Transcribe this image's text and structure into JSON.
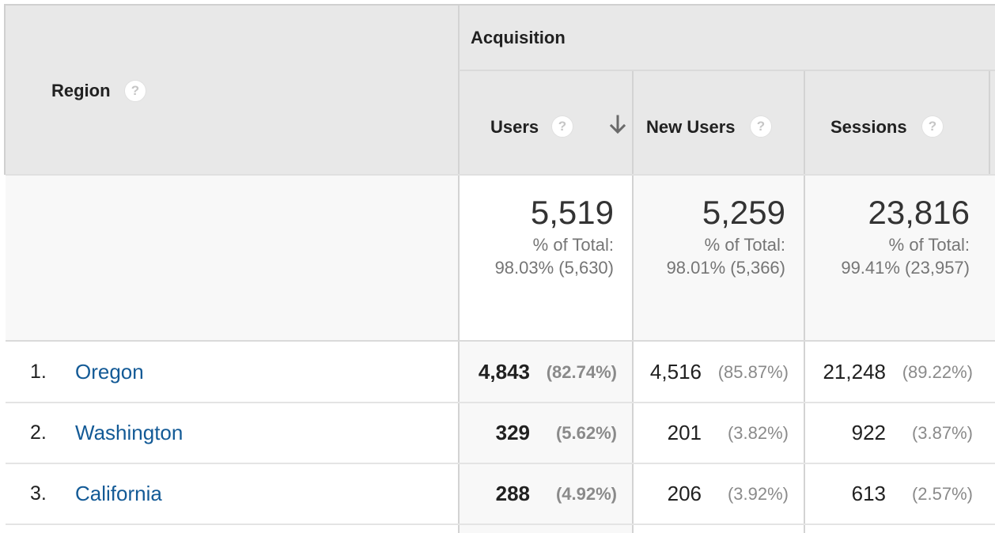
{
  "header": {
    "region_label": "Region",
    "group_label": "Acquisition",
    "columns": [
      {
        "label": "Users",
        "sorted": "descending"
      },
      {
        "label": "New Users"
      },
      {
        "label": "Sessions"
      }
    ],
    "help_glyph": "?"
  },
  "totals": [
    {
      "value": "5,519",
      "pct_label": "% of Total:",
      "pct_detail": "98.03% (5,630)"
    },
    {
      "value": "5,259",
      "pct_label": "% of Total:",
      "pct_detail": "98.01% (5,366)"
    },
    {
      "value": "23,816",
      "pct_label": "% of Total:",
      "pct_detail": "99.41% (23,957)"
    }
  ],
  "rows": [
    {
      "num": "1.",
      "region": "Oregon",
      "users": "4,843",
      "users_pct": "(82.74%)",
      "new_users": "4,516",
      "new_users_pct": "(85.87%)",
      "sessions": "21,248",
      "sessions_pct": "(89.22%)"
    },
    {
      "num": "2.",
      "region": "Washington",
      "users": "329",
      "users_pct": "(5.62%)",
      "new_users": "201",
      "new_users_pct": "(3.82%)",
      "sessions": "922",
      "sessions_pct": "(3.87%)"
    },
    {
      "num": "3.",
      "region": "California",
      "users": "288",
      "users_pct": "(4.92%)",
      "new_users": "206",
      "new_users_pct": "(3.92%)",
      "sessions": "613",
      "sessions_pct": "(2.57%)"
    }
  ],
  "colors": {
    "header_bg": "#e8e8e8",
    "summary_bg": "#f8f8f8",
    "link": "#135a96"
  }
}
